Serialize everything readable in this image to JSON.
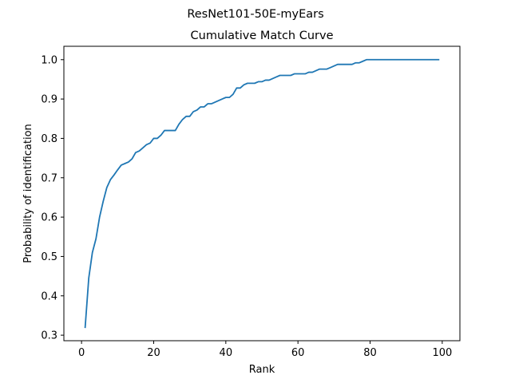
{
  "figure": {
    "suptitle": "ResNet101-50E-myEars"
  },
  "chart_data": {
    "type": "line",
    "title": "Cumulative Match Curve",
    "xlabel": "Rank",
    "ylabel": "Probability of identification",
    "xlim": [
      -4.9,
      104.9
    ],
    "ylim": [
      0.286,
      1.034
    ],
    "xticks": [
      0,
      20,
      40,
      60,
      80,
      100
    ],
    "xtick_labels": [
      "0",
      "20",
      "40",
      "60",
      "80",
      "100"
    ],
    "yticks": [
      0.3,
      0.4,
      0.5,
      0.6,
      0.7,
      0.8,
      0.9,
      1.0
    ],
    "ytick_labels": [
      "0.3",
      "0.4",
      "0.5",
      "0.6",
      "0.7",
      "0.8",
      "0.9",
      "1.0"
    ],
    "grid": false,
    "line_color": "#1f77b4",
    "series": [
      {
        "x": [
          1,
          2,
          3,
          4,
          5,
          6,
          7,
          8,
          9,
          10,
          11,
          12,
          13,
          14,
          15,
          16,
          17,
          18,
          19,
          20,
          21,
          22,
          23,
          24,
          25,
          26,
          27,
          28,
          29,
          30,
          31,
          32,
          33,
          34,
          35,
          36,
          37,
          38,
          39,
          40,
          41,
          42,
          43,
          44,
          45,
          46,
          47,
          48,
          49,
          50,
          51,
          52,
          53,
          54,
          55,
          56,
          57,
          58,
          59,
          60,
          61,
          62,
          63,
          64,
          65,
          66,
          67,
          68,
          69,
          70,
          71,
          72,
          73,
          74,
          75,
          76,
          77,
          78,
          79,
          80,
          81,
          82,
          83,
          84,
          85,
          86,
          87,
          88,
          89,
          90,
          91,
          92,
          93,
          94,
          95,
          96,
          97,
          98,
          99
        ],
        "values": [
          0.32,
          0.445,
          0.51,
          0.545,
          0.6,
          0.64,
          0.675,
          0.695,
          0.707,
          0.72,
          0.732,
          0.736,
          0.74,
          0.748,
          0.764,
          0.768,
          0.776,
          0.784,
          0.788,
          0.8,
          0.8,
          0.808,
          0.82,
          0.82,
          0.82,
          0.82,
          0.836,
          0.848,
          0.856,
          0.856,
          0.868,
          0.872,
          0.88,
          0.88,
          0.888,
          0.888,
          0.892,
          0.896,
          0.9,
          0.904,
          0.904,
          0.912,
          0.928,
          0.928,
          0.936,
          0.94,
          0.94,
          0.94,
          0.944,
          0.944,
          0.948,
          0.948,
          0.952,
          0.956,
          0.96,
          0.96,
          0.96,
          0.96,
          0.964,
          0.964,
          0.964,
          0.964,
          0.968,
          0.968,
          0.972,
          0.976,
          0.976,
          0.976,
          0.98,
          0.984,
          0.988,
          0.988,
          0.988,
          0.988,
          0.988,
          0.992,
          0.992,
          0.996,
          1.0,
          1.0,
          1.0,
          1.0,
          1.0,
          1.0,
          1.0,
          1.0,
          1.0,
          1.0,
          1.0,
          1.0,
          1.0,
          1.0,
          1.0,
          1.0,
          1.0,
          1.0,
          1.0,
          1.0,
          1.0
        ]
      }
    ]
  }
}
